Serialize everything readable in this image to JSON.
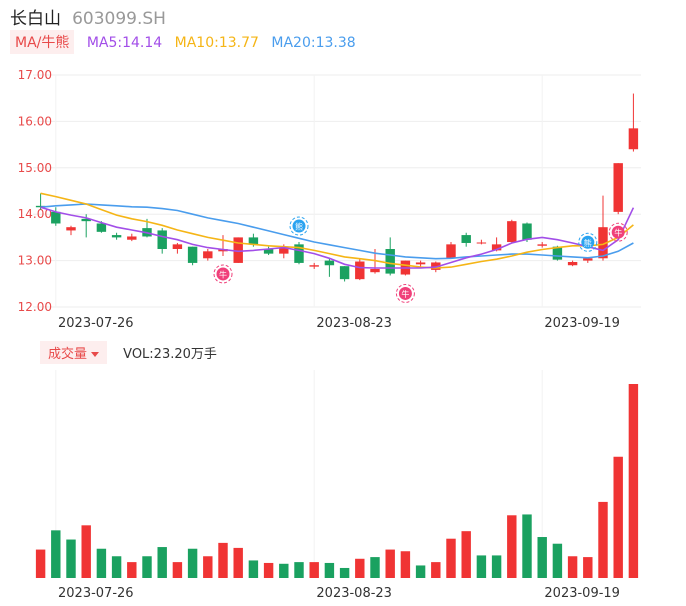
{
  "header": {
    "stock_name": "长白山",
    "stock_code": "603099.SH"
  },
  "indicators": {
    "ma_label": "MA/牛熊",
    "ma5": "MA5:14.14",
    "ma10": "MA10:13.77",
    "ma20": "MA20:13.38"
  },
  "volume_panel": {
    "label": "成交量",
    "value_text": "VOL:23.20万手"
  },
  "colors": {
    "up": "#f03434",
    "down": "#1aa160",
    "ma5": "#a24ee8",
    "ma10": "#f5b516",
    "ma20": "#4a9ded"
  },
  "chart_data": [
    {
      "type": "candlestick",
      "y_ticks": [
        "17.00",
        "16.00",
        "15.00",
        "14.00",
        "13.00",
        "12.00"
      ],
      "ylim": [
        12.0,
        17.0
      ],
      "x_tick_labels": [
        "2023-07-26",
        "2023-08-23",
        "2023-09-19"
      ],
      "x_tick_index": [
        1,
        18,
        33
      ],
      "candles": [
        {
          "o": 14.18,
          "h": 14.45,
          "l": 14.1,
          "c": 14.15
        },
        {
          "o": 14.05,
          "h": 14.15,
          "l": 13.75,
          "c": 13.8
        },
        {
          "o": 13.65,
          "h": 13.75,
          "l": 13.55,
          "c": 13.72
        },
        {
          "o": 13.9,
          "h": 14.0,
          "l": 13.5,
          "c": 13.85
        },
        {
          "o": 13.8,
          "h": 13.85,
          "l": 13.6,
          "c": 13.62
        },
        {
          "o": 13.55,
          "h": 13.6,
          "l": 13.45,
          "c": 13.5
        },
        {
          "o": 13.45,
          "h": 13.58,
          "l": 13.42,
          "c": 13.52
        },
        {
          "o": 13.7,
          "h": 13.9,
          "l": 13.5,
          "c": 13.52
        },
        {
          "o": 13.65,
          "h": 13.7,
          "l": 13.15,
          "c": 13.25
        },
        {
          "o": 13.25,
          "h": 13.38,
          "l": 13.15,
          "c": 13.35
        },
        {
          "o": 13.3,
          "h": 13.3,
          "l": 12.9,
          "c": 12.95
        },
        {
          "o": 13.05,
          "h": 13.25,
          "l": 13.0,
          "c": 13.2
        },
        {
          "o": 13.2,
          "h": 13.55,
          "l": 13.1,
          "c": 13.25
        },
        {
          "o": 12.95,
          "h": 13.5,
          "l": 12.95,
          "c": 13.5
        },
        {
          "o": 13.5,
          "h": 13.58,
          "l": 13.3,
          "c": 13.35
        },
        {
          "o": 13.25,
          "h": 13.3,
          "l": 13.12,
          "c": 13.15
        },
        {
          "o": 13.15,
          "h": 13.35,
          "l": 13.05,
          "c": 13.28
        },
        {
          "o": 13.35,
          "h": 13.4,
          "l": 12.92,
          "c": 12.95
        },
        {
          "o": 12.87,
          "h": 12.95,
          "l": 12.82,
          "c": 12.9
        },
        {
          "o": 13.0,
          "h": 13.05,
          "l": 12.65,
          "c": 12.9
        },
        {
          "o": 12.88,
          "h": 12.88,
          "l": 12.55,
          "c": 12.6
        },
        {
          "o": 12.6,
          "h": 13.05,
          "l": 12.58,
          "c": 12.98
        },
        {
          "o": 12.75,
          "h": 13.25,
          "l": 12.72,
          "c": 12.82
        },
        {
          "o": 13.25,
          "h": 13.5,
          "l": 12.68,
          "c": 12.72
        },
        {
          "o": 12.7,
          "h": 13.0,
          "l": 12.68,
          "c": 13.0
        },
        {
          "o": 12.92,
          "h": 13.0,
          "l": 12.85,
          "c": 12.96
        },
        {
          "o": 12.8,
          "h": 12.98,
          "l": 12.75,
          "c": 12.96
        },
        {
          "o": 13.05,
          "h": 13.4,
          "l": 13.05,
          "c": 13.35
        },
        {
          "o": 13.55,
          "h": 13.6,
          "l": 13.3,
          "c": 13.38
        },
        {
          "o": 13.37,
          "h": 13.45,
          "l": 13.35,
          "c": 13.39
        },
        {
          "o": 13.22,
          "h": 13.5,
          "l": 13.2,
          "c": 13.35
        },
        {
          "o": 13.4,
          "h": 13.88,
          "l": 13.38,
          "c": 13.85
        },
        {
          "o": 13.8,
          "h": 13.82,
          "l": 13.4,
          "c": 13.45
        },
        {
          "o": 13.32,
          "h": 13.4,
          "l": 13.28,
          "c": 13.35
        },
        {
          "o": 13.3,
          "h": 13.32,
          "l": 13.0,
          "c": 13.02
        },
        {
          "o": 12.9,
          "h": 13.0,
          "l": 12.88,
          "c": 12.97
        },
        {
          "o": 13.0,
          "h": 13.05,
          "l": 12.95,
          "c": 13.05
        },
        {
          "o": 13.05,
          "h": 14.4,
          "l": 13.0,
          "c": 13.72
        },
        {
          "o": 14.05,
          "h": 15.1,
          "l": 14.0,
          "c": 15.1
        },
        {
          "o": 15.4,
          "h": 16.6,
          "l": 15.35,
          "c": 15.85
        }
      ],
      "ma5": [
        14.15,
        14.05,
        13.98,
        13.92,
        13.82,
        13.72,
        13.66,
        13.6,
        13.52,
        13.45,
        13.35,
        13.28,
        13.24,
        13.2,
        13.22,
        13.25,
        13.28,
        13.22,
        13.15,
        13.05,
        12.92,
        12.85,
        12.84,
        12.84,
        12.84,
        12.84,
        12.86,
        12.96,
        13.06,
        13.14,
        13.24,
        13.38,
        13.46,
        13.5,
        13.45,
        13.38,
        13.3,
        13.22,
        13.45,
        14.14
      ],
      "ma10": [
        14.45,
        14.38,
        14.3,
        14.22,
        14.1,
        13.98,
        13.9,
        13.84,
        13.76,
        13.66,
        13.58,
        13.5,
        13.44,
        13.38,
        13.35,
        13.32,
        13.3,
        13.28,
        13.22,
        13.15,
        13.08,
        13.04,
        13.0,
        12.94,
        12.9,
        12.86,
        12.84,
        12.86,
        12.92,
        12.98,
        13.03,
        13.1,
        13.18,
        13.24,
        13.28,
        13.32,
        13.32,
        13.35,
        13.5,
        13.77
      ],
      "ma20": [
        14.15,
        14.18,
        14.2,
        14.22,
        14.2,
        14.18,
        14.16,
        14.15,
        14.12,
        14.08,
        14.0,
        13.92,
        13.86,
        13.8,
        13.72,
        13.64,
        13.56,
        13.48,
        13.4,
        13.34,
        13.28,
        13.22,
        13.16,
        13.12,
        13.08,
        13.06,
        13.04,
        13.05,
        13.08,
        13.1,
        13.12,
        13.14,
        13.14,
        13.12,
        13.1,
        13.08,
        13.06,
        13.1,
        13.2,
        13.38
      ],
      "signals": [
        {
          "index": 12,
          "text": "牛",
          "kind": "bull"
        },
        {
          "index": 17,
          "text": "熊",
          "kind": "bear"
        },
        {
          "index": 24,
          "text": "牛",
          "kind": "bull"
        },
        {
          "index": 36,
          "text": "熊",
          "kind": "bear"
        },
        {
          "index": 38,
          "text": "牛",
          "kind": "bull"
        }
      ]
    },
    {
      "type": "bar",
      "unit": "万手",
      "max_value": 23.2,
      "x_tick_labels": [
        "2023-07-26",
        "2023-08-23",
        "2023-09-19"
      ],
      "x_tick_index": [
        1,
        18,
        33
      ],
      "values": [
        3.4,
        5.7,
        4.6,
        6.3,
        3.5,
        2.6,
        1.9,
        2.6,
        3.7,
        1.9,
        3.5,
        2.6,
        4.2,
        3.6,
        2.1,
        1.8,
        1.7,
        1.9,
        1.9,
        1.8,
        1.2,
        2.3,
        2.5,
        3.4,
        3.2,
        1.5,
        1.9,
        4.7,
        5.6,
        2.7,
        2.7,
        7.5,
        7.6,
        4.9,
        4.1,
        2.6,
        2.5,
        9.1,
        14.5,
        23.2
      ],
      "up": [
        true,
        false,
        false,
        true,
        false,
        false,
        true,
        false,
        false,
        true,
        false,
        true,
        true,
        true,
        false,
        true,
        false,
        false,
        true,
        false,
        false,
        true,
        false,
        true,
        true,
        false,
        true,
        true,
        true,
        false,
        false,
        true,
        false,
        false,
        false,
        true,
        true,
        true,
        true,
        true
      ]
    }
  ]
}
